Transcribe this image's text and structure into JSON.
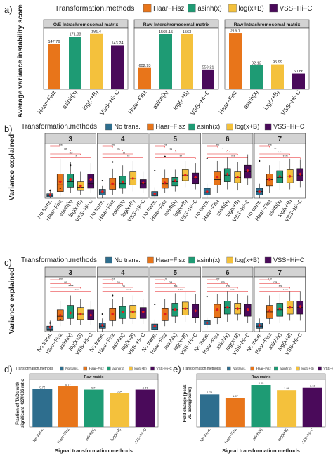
{
  "colors": {
    "none": "#2e6e8e",
    "haar": "#e8751a",
    "asinh": "#1e9b74",
    "log": "#f4c13c",
    "vss": "#4a0a5a",
    "mean": "#e41a1c",
    "strip": "#d3d3d3",
    "sig": "#e41a1c"
  },
  "panel_letters": [
    "a)",
    "b)",
    "c)",
    "d)",
    "e)"
  ],
  "panel_a": {
    "legend_title": "Transformation.methods",
    "legend_items": [
      "Haar−Fisz",
      "asinh(x)",
      "log(x+B)",
      "VSS−Hi−C"
    ],
    "ylabel": "Average variance instability score",
    "categories": [
      "Haar−Fisz",
      "asinh(x)",
      "log(x+B)",
      "VSS−Hi−C"
    ],
    "facets": [
      {
        "title": "O/E Intrachromosomal matrix",
        "values": [
          147.76,
          171.38,
          181.4,
          143.24
        ],
        "labels": [
          "147.76",
          "171.38",
          "181.4",
          "143.24"
        ],
        "ymax": 190
      },
      {
        "title": "Raw Interchromosomal matrix",
        "values": [
          602.93,
          1565.15,
          1563,
          559.21
        ],
        "labels": [
          "602.93",
          "1565.15",
          "1563",
          "559.21"
        ],
        "ymax": 1650
      },
      {
        "title": "Raw Intrachromosomal matrix",
        "values": [
          216.7,
          92.12,
          95.99,
          60.86
        ],
        "labels": [
          "216.7",
          "92.12",
          "95.99",
          "60.86"
        ],
        "ymax": 225
      }
    ]
  },
  "panel_b": {
    "legend_title": "Transformation.methods",
    "legend_items": [
      "No trans.",
      "Haar−Fisz",
      "asinh(x)",
      "log(x+B)",
      "VSS−Hi−C"
    ],
    "ylabel": "Variance explained",
    "categories": [
      "No trans.",
      "Haar−Fisz",
      "asinh(x)",
      "log(x+B)",
      "VSS−Hi−C"
    ],
    "facets": [
      "3",
      "4",
      "5",
      "6",
      "7"
    ],
    "sig_labels": [
      [
        "ns",
        "ns",
        "ns",
        "*"
      ],
      [
        "ns",
        "ns",
        "ns",
        "**"
      ],
      [
        "ns",
        "ns",
        "**",
        "**"
      ],
      [
        "ns",
        "*",
        "***",
        "***"
      ],
      [
        "ns",
        "**",
        "****",
        "****"
      ]
    ],
    "box_stats": [
      [
        [
          0.0,
          0.01,
          0.02,
          0.04,
          0.08
        ],
        [
          0.02,
          0.06,
          0.12,
          0.22,
          0.36
        ],
        [
          0.05,
          0.1,
          0.15,
          0.22,
          0.33
        ],
        [
          0.03,
          0.07,
          0.1,
          0.15,
          0.24
        ],
        [
          0.05,
          0.09,
          0.13,
          0.22,
          0.32
        ]
      ],
      [
        [
          0.0,
          0.03,
          0.05,
          0.08,
          0.11
        ],
        [
          0.03,
          0.08,
          0.12,
          0.18,
          0.27
        ],
        [
          0.04,
          0.09,
          0.13,
          0.2,
          0.3
        ],
        [
          0.06,
          0.12,
          0.18,
          0.24,
          0.34
        ],
        [
          0.05,
          0.09,
          0.13,
          0.17,
          0.24
        ]
      ],
      [
        [
          0.0,
          0.02,
          0.03,
          0.06,
          0.1
        ],
        [
          0.05,
          0.09,
          0.13,
          0.18,
          0.26
        ],
        [
          0.06,
          0.11,
          0.15,
          0.19,
          0.26
        ],
        [
          0.1,
          0.16,
          0.21,
          0.26,
          0.34
        ],
        [
          0.08,
          0.13,
          0.18,
          0.23,
          0.32
        ]
      ],
      [
        [
          0.0,
          0.03,
          0.05,
          0.09,
          0.13
        ],
        [
          0.05,
          0.12,
          0.17,
          0.24,
          0.34
        ],
        [
          0.08,
          0.15,
          0.21,
          0.27,
          0.37
        ],
        [
          0.07,
          0.14,
          0.19,
          0.24,
          0.33
        ],
        [
          0.12,
          0.18,
          0.24,
          0.3,
          0.4
        ]
      ],
      [
        [
          0.0,
          0.03,
          0.06,
          0.09,
          0.13
        ],
        [
          0.05,
          0.11,
          0.17,
          0.22,
          0.3
        ],
        [
          0.07,
          0.14,
          0.19,
          0.25,
          0.34
        ],
        [
          0.08,
          0.14,
          0.2,
          0.26,
          0.36
        ],
        [
          0.1,
          0.16,
          0.21,
          0.27,
          0.35
        ]
      ]
    ],
    "means": [
      [
        0.03,
        0.15,
        0.17,
        0.11,
        0.17
      ],
      [
        0.06,
        0.13,
        0.15,
        0.18,
        0.14
      ],
      [
        0.04,
        0.14,
        0.16,
        0.21,
        0.19
      ],
      [
        0.06,
        0.19,
        0.22,
        0.19,
        0.25
      ],
      [
        0.06,
        0.17,
        0.2,
        0.2,
        0.22
      ]
    ],
    "outliers": [
      [
        0.07,
        0.09,
        0.3
      ],
      [
        0.16,
        0.33
      ],
      [
        0.25,
        0.38
      ],
      [
        0.36
      ],
      [
        0.34
      ]
    ],
    "ymax": 0.5
  },
  "panel_c": {
    "legend_title": "Transformation.methods",
    "legend_items": [
      "No trans.",
      "Haar−Fisz",
      "asinh(x)",
      "log(x+B)",
      "VSS−Hi−C"
    ],
    "ylabel": "Variance explained",
    "categories": [
      "No trans.",
      "Haar−Fisz",
      "asinh(x)",
      "log(x+B)",
      "VSS−Hi−C"
    ],
    "facets": [
      "3",
      "4",
      "5",
      "6",
      "7"
    ],
    "sig_labels": [
      [
        "ns",
        "ns",
        "****",
        "****"
      ],
      [
        "ns",
        "ns",
        "ns",
        "****"
      ],
      [
        "ns",
        "ns",
        "ns",
        "****"
      ],
      [
        "ns",
        "ns",
        "ns",
        "****"
      ],
      [
        "ns",
        "ns",
        "ns",
        "****"
      ]
    ],
    "box_stats": [
      [
        [
          0.0,
          0.01,
          0.02,
          0.05,
          0.1
        ],
        [
          0.05,
          0.1,
          0.14,
          0.2,
          0.28
        ],
        [
          0.06,
          0.12,
          0.17,
          0.24,
          0.33
        ],
        [
          0.06,
          0.11,
          0.16,
          0.22,
          0.3
        ],
        [
          0.06,
          0.11,
          0.15,
          0.2,
          0.28
        ]
      ],
      [
        [
          0.0,
          0.03,
          0.05,
          0.08,
          0.12
        ],
        [
          0.05,
          0.1,
          0.15,
          0.21,
          0.3
        ],
        [
          0.07,
          0.12,
          0.17,
          0.23,
          0.32
        ],
        [
          0.07,
          0.12,
          0.18,
          0.24,
          0.33
        ],
        [
          0.07,
          0.12,
          0.17,
          0.22,
          0.3
        ]
      ],
      [
        [
          0.0,
          0.02,
          0.04,
          0.07,
          0.11
        ],
        [
          0.05,
          0.1,
          0.15,
          0.21,
          0.3
        ],
        [
          0.08,
          0.14,
          0.2,
          0.26,
          0.35
        ],
        [
          0.09,
          0.15,
          0.21,
          0.27,
          0.36
        ],
        [
          0.08,
          0.13,
          0.19,
          0.25,
          0.34
        ]
      ],
      [
        [
          0.03,
          0.06,
          0.08,
          0.1,
          0.13
        ],
        [
          0.07,
          0.13,
          0.19,
          0.25,
          0.34
        ],
        [
          0.09,
          0.16,
          0.22,
          0.28,
          0.37
        ],
        [
          0.1,
          0.16,
          0.21,
          0.26,
          0.34
        ],
        [
          0.08,
          0.14,
          0.19,
          0.25,
          0.33
        ]
      ],
      [
        [
          0.0,
          0.03,
          0.05,
          0.08,
          0.12
        ],
        [
          0.07,
          0.12,
          0.18,
          0.24,
          0.33
        ],
        [
          0.08,
          0.14,
          0.2,
          0.26,
          0.35
        ],
        [
          0.1,
          0.16,
          0.22,
          0.28,
          0.37
        ],
        [
          0.1,
          0.16,
          0.22,
          0.28,
          0.37
        ]
      ]
    ],
    "means": [
      [
        0.04,
        0.15,
        0.17,
        0.16,
        0.15
      ],
      [
        0.06,
        0.16,
        0.18,
        0.18,
        0.18
      ],
      [
        0.05,
        0.16,
        0.2,
        0.21,
        0.19
      ],
      [
        0.08,
        0.2,
        0.22,
        0.21,
        0.2
      ],
      [
        0.06,
        0.19,
        0.21,
        0.22,
        0.23
      ]
    ],
    "outliers": [
      [
        0.08,
        0.11
      ],
      [
        0.16,
        0.33
      ],
      [
        0.25
      ],
      [
        0.32
      ],
      []
    ],
    "ymax": 0.5
  },
  "panel_d": {
    "legend_title": "Transformation.methods",
    "legend_items": [
      "No trans.",
      "Haar−Fisz",
      "asinh(x)",
      "log(x+B)",
      "VSS−Hi−C"
    ],
    "strip": "Raw matrix",
    "ylabel": "Fraction of TADs with significant K27/K36 ratio",
    "xlabel": "Signal transformation methods",
    "categories": [
      "No trans.",
      "Haar−Fisz",
      "asinh(x)",
      "log(x+B)",
      "VSS−Hi−C"
    ],
    "values": [
      0.72,
      0.77,
      0.71,
      0.64,
      0.71
    ],
    "labels": [
      "0.72",
      "0.77",
      "0.71",
      "0.64",
      "0.71"
    ],
    "ymax": 0.85
  },
  "panel_e": {
    "legend_title": "Transformation.methods",
    "legend_items": [
      "No trans.",
      "Haar−Fisz",
      "asinh(x)",
      "log(x+B)",
      "VSS−Hi−C"
    ],
    "strip": "Raw matrix",
    "ylabel": "Fold change (peak vs. background)",
    "xlabel": "Signal transformation methods",
    "categories": [
      "No trans.",
      "Haar−Fisz",
      "asinh(x)",
      "log(x+B)",
      "VSS−Hi−C"
    ],
    "values": [
      1.75,
      1.57,
      2.25,
      1.98,
      2.11
    ],
    "labels": [
      "1.75",
      "1.57",
      "2.25",
      "1.98",
      "2.11"
    ],
    "ymax": 2.4
  },
  "chart_data": [
    {
      "type": "bar",
      "panel": "a",
      "ylabel": "Average variance instability score",
      "categories": [
        "Haar−Fisz",
        "asinh(x)",
        "log(x+B)",
        "VSS−Hi−C"
      ],
      "series": [
        {
          "name": "O/E Intrachromosomal matrix",
          "values": [
            147.76,
            171.38,
            181.4,
            143.24
          ]
        },
        {
          "name": "Raw Interchromosomal matrix",
          "values": [
            602.93,
            1565.15,
            1563,
            559.21
          ]
        },
        {
          "name": "Raw Intrachromosomal matrix",
          "values": [
            216.7,
            92.12,
            95.99,
            60.86
          ]
        }
      ],
      "legend": "top"
    },
    {
      "type": "box",
      "panel": "b",
      "ylabel": "Variance explained",
      "facets": [
        "3",
        "4",
        "5",
        "6",
        "7"
      ],
      "categories": [
        "No trans.",
        "Haar−Fisz",
        "asinh(x)",
        "log(x+B)",
        "VSS−Hi−C"
      ],
      "ylim": [
        0,
        0.5
      ],
      "legend": "top"
    },
    {
      "type": "box",
      "panel": "c",
      "ylabel": "Variance explained",
      "facets": [
        "3",
        "4",
        "5",
        "6",
        "7"
      ],
      "categories": [
        "No trans.",
        "Haar−Fisz",
        "asinh(x)",
        "log(x+B)",
        "VSS−Hi−C"
      ],
      "ylim": [
        0,
        0.5
      ],
      "legend": "top"
    },
    {
      "type": "bar",
      "panel": "d",
      "ylabel": "Fraction of TADs with significant K27/K36 ratio",
      "xlabel": "Signal transformation methods",
      "categories": [
        "No trans.",
        "Haar−Fisz",
        "asinh(x)",
        "log(x+B)",
        "VSS−Hi−C"
      ],
      "values": [
        0.72,
        0.77,
        0.71,
        0.64,
        0.71
      ]
    },
    {
      "type": "bar",
      "panel": "e",
      "ylabel": "Fold change (peak vs. background)",
      "xlabel": "Signal transformation methods",
      "categories": [
        "No trans.",
        "Haar−Fisz",
        "asinh(x)",
        "log(x+B)",
        "VSS−Hi−C"
      ],
      "values": [
        1.75,
        1.57,
        2.25,
        1.98,
        2.11
      ]
    }
  ]
}
